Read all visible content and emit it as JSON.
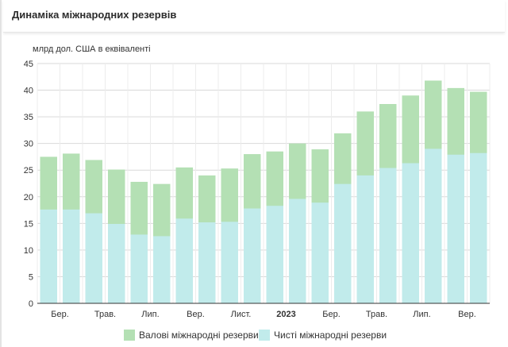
{
  "title": "Динаміка міжнародних резервів",
  "chart_data": {
    "type": "bar",
    "stacked": false,
    "unit_label": "млрд дол. США в еквіваленті",
    "ylim": [
      0,
      45
    ],
    "yticks": [
      0,
      5,
      10,
      15,
      20,
      25,
      30,
      35,
      40,
      45
    ],
    "grid": true,
    "legend_position": "bottom",
    "x_tick_labels": [
      {
        "index": 1,
        "label": "Бер.",
        "bold": false
      },
      {
        "index": 3,
        "label": "Трав.",
        "bold": false
      },
      {
        "index": 5,
        "label": "Лип.",
        "bold": false
      },
      {
        "index": 7,
        "label": "Вер.",
        "bold": false
      },
      {
        "index": 9,
        "label": "Лист.",
        "bold": false
      },
      {
        "index": 11,
        "label": "2023",
        "bold": true
      },
      {
        "index": 13,
        "label": "Бер.",
        "bold": false
      },
      {
        "index": 15,
        "label": "Трав.",
        "bold": false
      },
      {
        "index": 17,
        "label": "Лип.",
        "bold": false
      },
      {
        "index": 19,
        "label": "Вер.",
        "bold": false
      }
    ],
    "series": [
      {
        "name": "Валові міжнародні резерви",
        "color": "#b4e0b4",
        "values": [
          27.5,
          28.1,
          26.9,
          25.1,
          22.8,
          22.4,
          25.5,
          24.0,
          25.3,
          28.0,
          28.5,
          30.0,
          28.9,
          31.9,
          36.0,
          37.4,
          39.0,
          41.8,
          40.4,
          39.7
        ]
      },
      {
        "name": "Чисті міжнародні резерви",
        "color": "#c1ebeb",
        "values": [
          17.6,
          17.6,
          16.9,
          14.9,
          12.9,
          12.6,
          15.9,
          15.2,
          15.3,
          17.8,
          18.3,
          19.6,
          18.9,
          22.4,
          24.0,
          25.4,
          26.3,
          29.0,
          27.9,
          28.2
        ]
      }
    ]
  }
}
